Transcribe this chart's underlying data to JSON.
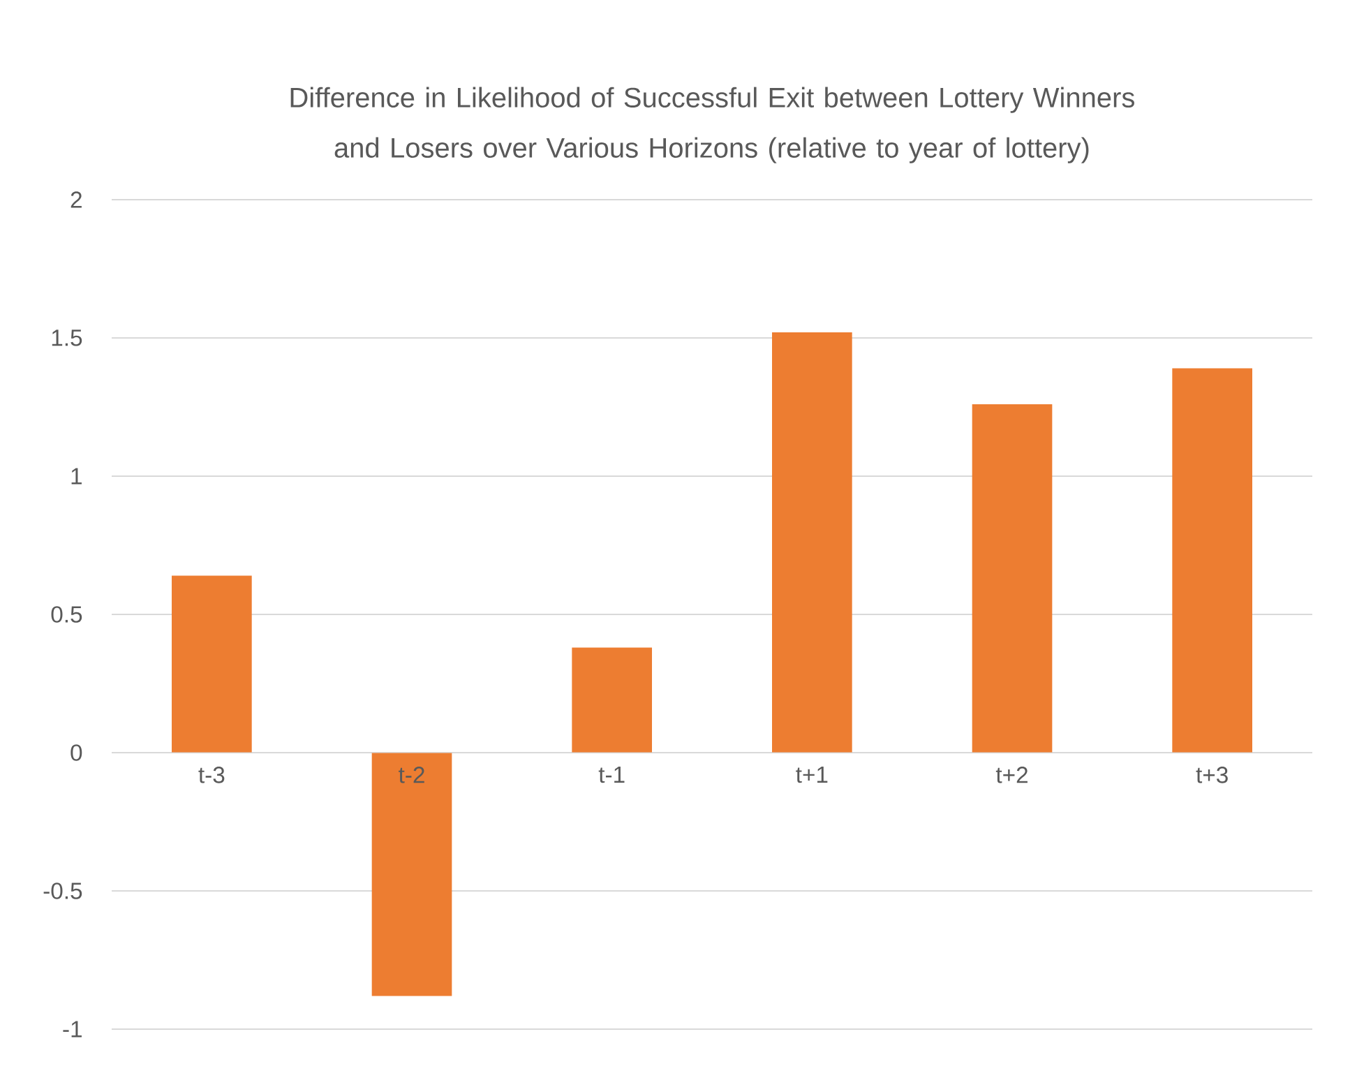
{
  "chart_data": {
    "type": "bar",
    "title": "Difference in Likelihood of Successful Exit between Lottery Winners and Losers over Various Horizons (relative to year of lottery)",
    "categories": [
      "t-3",
      "t-2",
      "t-1",
      "t+1",
      "t+2",
      "t+3"
    ],
    "values": [
      0.64,
      -0.88,
      0.38,
      1.52,
      1.26,
      1.39
    ],
    "color": "#ed7d31",
    "ylim": [
      -1,
      2
    ],
    "yticks": [
      -1,
      -0.5,
      0,
      0.5,
      1,
      1.5,
      2
    ],
    "grid": "y"
  }
}
